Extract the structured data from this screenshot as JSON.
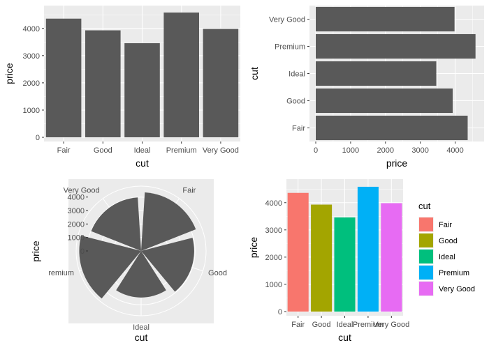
{
  "chart_data": [
    {
      "type": "bar",
      "orientation": "vertical",
      "categories": [
        "Fair",
        "Good",
        "Ideal",
        "Premium",
        "Very Good"
      ],
      "values": [
        4359,
        3929,
        3458,
        4584,
        3982
      ],
      "xlabel": "cut",
      "ylabel": "price",
      "ylim": [
        0,
        4813
      ],
      "yticks": [
        0,
        1000,
        2000,
        3000,
        4000
      ],
      "fill": "#595959",
      "grid": true
    },
    {
      "type": "bar",
      "orientation": "horizontal",
      "categories": [
        "Fair",
        "Good",
        "Ideal",
        "Premium",
        "Very Good"
      ],
      "values": [
        4359,
        3929,
        3458,
        4584,
        3982
      ],
      "xlabel": "price",
      "ylabel": "cut",
      "xlim": [
        0,
        4813
      ],
      "xticks": [
        0,
        1000,
        2000,
        3000,
        4000
      ],
      "fill": "#595959",
      "grid": true
    },
    {
      "type": "pie",
      "subtype": "polar-bar",
      "categories": [
        "Fair",
        "Good",
        "Ideal",
        "Premium",
        "Very Good"
      ],
      "category_labels": [
        "Fair",
        "Good",
        "Ideal",
        "remium",
        "Very Good"
      ],
      "values": [
        4359,
        3929,
        3458,
        4584,
        3982
      ],
      "xlabel": "cut",
      "ylabel": "price",
      "rlim": [
        0,
        4813
      ],
      "rticks": [
        0,
        1000,
        2000,
        3000,
        4000
      ],
      "fill": "#595959"
    },
    {
      "type": "bar",
      "orientation": "vertical",
      "categories": [
        "Fair",
        "Good",
        "Ideal",
        "Premium",
        "Very Good"
      ],
      "values": [
        4359,
        3929,
        3458,
        4584,
        3982
      ],
      "colors": [
        "#F8766D",
        "#A3A500",
        "#00BF7D",
        "#00B0F6",
        "#E76BF3"
      ],
      "xlabel": "cut",
      "ylabel": "price",
      "ylim": [
        0,
        4813
      ],
      "yticks": [
        0,
        1000,
        2000,
        3000,
        4000
      ],
      "legend_title": "cut",
      "legend_position": "right"
    }
  ]
}
